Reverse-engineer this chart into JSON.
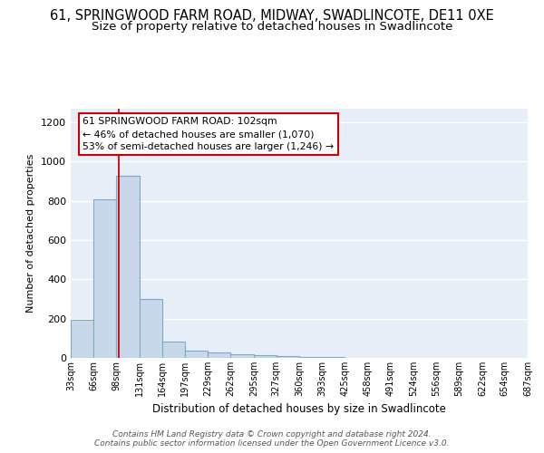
{
  "title1": "61, SPRINGWOOD FARM ROAD, MIDWAY, SWADLINCOTE, DE11 0XE",
  "title2": "Size of property relative to detached houses in Swadlincote",
  "xlabel": "Distribution of detached houses by size in Swadlincote",
  "ylabel": "Number of detached properties",
  "bin_edges": [
    33,
    66,
    98,
    131,
    164,
    197,
    229,
    262,
    295,
    327,
    360,
    393,
    425,
    458,
    491,
    524,
    556,
    589,
    622,
    654,
    687
  ],
  "bar_heights": [
    195,
    810,
    930,
    300,
    85,
    35,
    30,
    18,
    15,
    10,
    5,
    3,
    2,
    2,
    1,
    1,
    1,
    1,
    0,
    0
  ],
  "bar_color": "#c8d8ea",
  "bar_edge_color": "#7aaac8",
  "vline_x": 102,
  "vline_color": "#cc0000",
  "annotation_text": "61 SPRINGWOOD FARM ROAD: 102sqm\n← 46% of detached houses are smaller (1,070)\n53% of semi-detached houses are larger (1,246) →",
  "annotation_box_facecolor": "#ffffff",
  "annotation_box_edgecolor": "#cc0000",
  "ylim": [
    0,
    1270
  ],
  "yticks": [
    0,
    200,
    400,
    600,
    800,
    1000,
    1200
  ],
  "bg_color": "#e8eef8",
  "footer_text": "Contains HM Land Registry data © Crown copyright and database right 2024.\nContains public sector information licensed under the Open Government Licence v3.0.",
  "title1_fontsize": 10.5,
  "title2_fontsize": 9.5,
  "footer_fontsize": 6.5,
  "tick_labels": [
    "33sqm",
    "66sqm",
    "98sqm",
    "131sqm",
    "164sqm",
    "197sqm",
    "229sqm",
    "262sqm",
    "295sqm",
    "327sqm",
    "360sqm",
    "393sqm",
    "425sqm",
    "458sqm",
    "491sqm",
    "524sqm",
    "556sqm",
    "589sqm",
    "622sqm",
    "654sqm",
    "687sqm"
  ]
}
